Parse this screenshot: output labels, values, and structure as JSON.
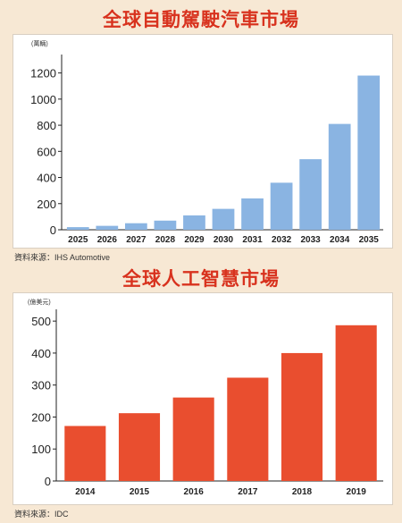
{
  "colors": {
    "accent": "#d8321e",
    "blue_bar": "#8ab4e2",
    "orange_bar": "#e94e2f"
  },
  "chart_data": [
    {
      "type": "bar",
      "title": "全球自動駕駛汽車市場",
      "unit_label": "(萬輛)",
      "categories": [
        "2025",
        "2026",
        "2027",
        "2028",
        "2029",
        "2030",
        "2031",
        "2032",
        "2033",
        "2034",
        "2035"
      ],
      "values": [
        20,
        30,
        50,
        70,
        110,
        160,
        240,
        360,
        540,
        810,
        1180
      ],
      "ylim": [
        0,
        1300
      ],
      "yticks": [
        0,
        200,
        400,
        600,
        800,
        1000,
        1200
      ],
      "grid": false,
      "source": "資料來源：IHS Automotive"
    },
    {
      "type": "bar",
      "title": "全球人工智慧市場",
      "unit_label": "(億美元)",
      "categories": [
        "2014",
        "2015",
        "2016",
        "2017",
        "2018",
        "2019"
      ],
      "values": [
        172,
        212,
        261,
        323,
        400,
        487
      ],
      "ylim": [
        0,
        520
      ],
      "yticks": [
        0,
        100,
        200,
        300,
        400,
        500
      ],
      "grid": false,
      "source": "資料來源：IDC"
    }
  ]
}
